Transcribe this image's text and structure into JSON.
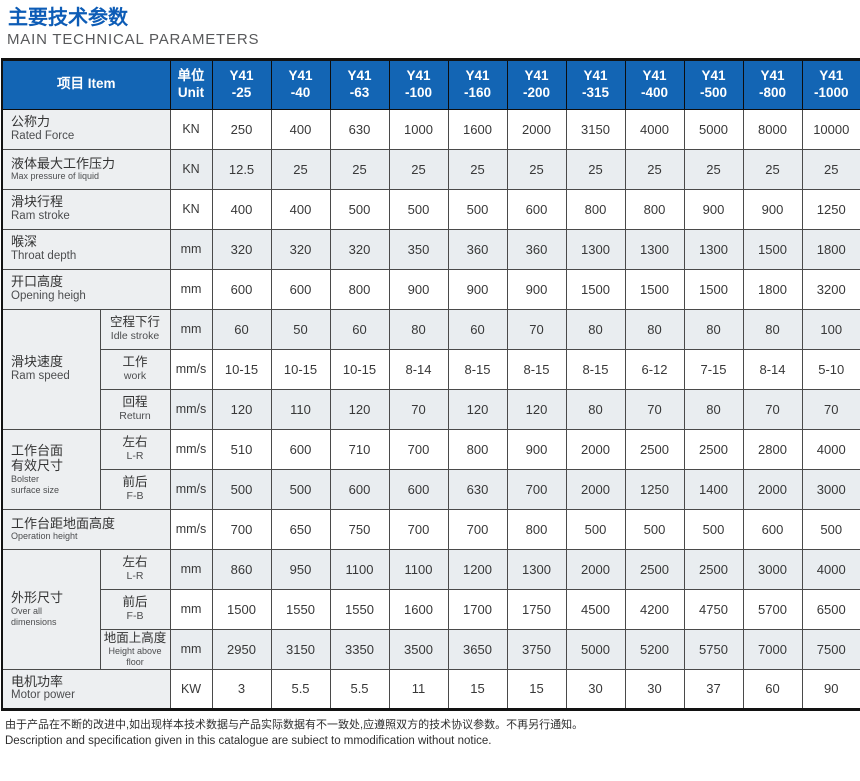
{
  "header": {
    "title_cn": "主要技术参数",
    "title_en": "MAIN TECHNICAL PARAMETERS"
  },
  "table": {
    "item_header": "项目 Item",
    "unit_header_cn": "单位",
    "unit_header_en": "Unit",
    "model_prefix": "Y41",
    "model_suffixes": [
      "-25",
      "-40",
      "-63",
      "-100",
      "-160",
      "-200",
      "-315",
      "-400",
      "-500",
      "-800",
      "-1000"
    ],
    "rows": [
      {
        "cn": "公称力",
        "en": "Rated Force",
        "unit": "KN",
        "values": [
          "250",
          "400",
          "630",
          "1000",
          "1600",
          "2000",
          "3150",
          "4000",
          "5000",
          "8000",
          "10000"
        ]
      },
      {
        "cn": "液体最大工作压力",
        "en": "Max pressure of liquid",
        "unit": "KN",
        "values": [
          "12.5",
          "25",
          "25",
          "25",
          "25",
          "25",
          "25",
          "25",
          "25",
          "25",
          "25"
        ]
      },
      {
        "cn": "滑块行程",
        "en": "Ram stroke",
        "unit": "KN",
        "values": [
          "400",
          "400",
          "500",
          "500",
          "500",
          "600",
          "800",
          "800",
          "900",
          "900",
          "1250"
        ]
      },
      {
        "cn": "喉深",
        "en": "Throat depth",
        "unit": "mm",
        "values": [
          "320",
          "320",
          "320",
          "350",
          "360",
          "360",
          "1300",
          "1300",
          "1300",
          "1500",
          "1800"
        ]
      },
      {
        "cn": "开口高度",
        "en": "Opening heigh",
        "unit": "mm",
        "values": [
          "600",
          "600",
          "800",
          "900",
          "900",
          "900",
          "1500",
          "1500",
          "1500",
          "1800",
          "3200"
        ]
      },
      {
        "group_cn": "滑块速度",
        "group_en": "Ram speed",
        "group_span": 3,
        "cn": "空程下行",
        "en": "Idle stroke",
        "unit": "mm",
        "values": [
          "60",
          "50",
          "60",
          "80",
          "60",
          "70",
          "80",
          "80",
          "80",
          "80",
          "100"
        ]
      },
      {
        "cn": "工作",
        "en": "work",
        "unit": "mm/s",
        "values": [
          "10-15",
          "10-15",
          "10-15",
          "8-14",
          "8-15",
          "8-15",
          "8-15",
          "6-12",
          "7-15",
          "8-14",
          "5-10"
        ]
      },
      {
        "cn": "回程",
        "en": "Return",
        "unit": "mm/s",
        "values": [
          "120",
          "110",
          "120",
          "70",
          "120",
          "120",
          "80",
          "70",
          "80",
          "70",
          "70"
        ]
      },
      {
        "group_cn": "工作台面\n有效尺寸",
        "group_en": "Bolster\nsurface size",
        "group_span": 2,
        "cn": "左右",
        "en": "L-R",
        "unit": "mm/s",
        "values": [
          "510",
          "600",
          "710",
          "700",
          "800",
          "900",
          "2000",
          "2500",
          "2500",
          "2800",
          "4000"
        ]
      },
      {
        "cn": "前后",
        "en": "F-B",
        "unit": "mm/s",
        "values": [
          "500",
          "500",
          "600",
          "600",
          "630",
          "700",
          "2000",
          "1250",
          "1400",
          "2000",
          "3000"
        ]
      },
      {
        "cn": "工作台距地面高度",
        "en": "Operation height",
        "unit": "mm/s",
        "values": [
          "700",
          "650",
          "750",
          "700",
          "700",
          "800",
          "500",
          "500",
          "500",
          "600",
          "500"
        ]
      },
      {
        "group_cn": "外形尺寸",
        "group_en": "Over all\ndimensions",
        "group_span": 3,
        "cn": "左右",
        "en": "L-R",
        "unit": "mm",
        "values": [
          "860",
          "950",
          "1100",
          "1100",
          "1200",
          "1300",
          "2000",
          "2500",
          "2500",
          "3000",
          "4000"
        ]
      },
      {
        "cn": "前后",
        "en": "F-B",
        "unit": "mm",
        "values": [
          "1500",
          "1550",
          "1550",
          "1600",
          "1700",
          "1750",
          "4500",
          "4200",
          "4750",
          "5700",
          "6500"
        ]
      },
      {
        "cn": "地面上高度",
        "en": "Height above floor",
        "unit": "mm",
        "values": [
          "2950",
          "3150",
          "3350",
          "3500",
          "3650",
          "3750",
          "5000",
          "5200",
          "5750",
          "7000",
          "7500"
        ]
      },
      {
        "cn": "电机功率",
        "en": "Motor power",
        "unit": "KW",
        "values": [
          "3",
          "5.5",
          "5.5",
          "11",
          "15",
          "15",
          "30",
          "30",
          "37",
          "60",
          "90"
        ]
      }
    ]
  },
  "footer": {
    "note_cn": "由于产品在不断的改进中,如出现样本技术数据与产品实际数据有不一致处,应遵照双方的技术协议参数。不再另行通知。",
    "note_en": "Description and specification given in this catalogue are subiect to mmodification without notice."
  },
  "colors": {
    "header_blue": "#1365b4",
    "title_blue": "#0d5cb6",
    "zebra_gray": "#e9edf0",
    "label_gray": "#edeff1",
    "grid_line": "#4a4a4a"
  }
}
